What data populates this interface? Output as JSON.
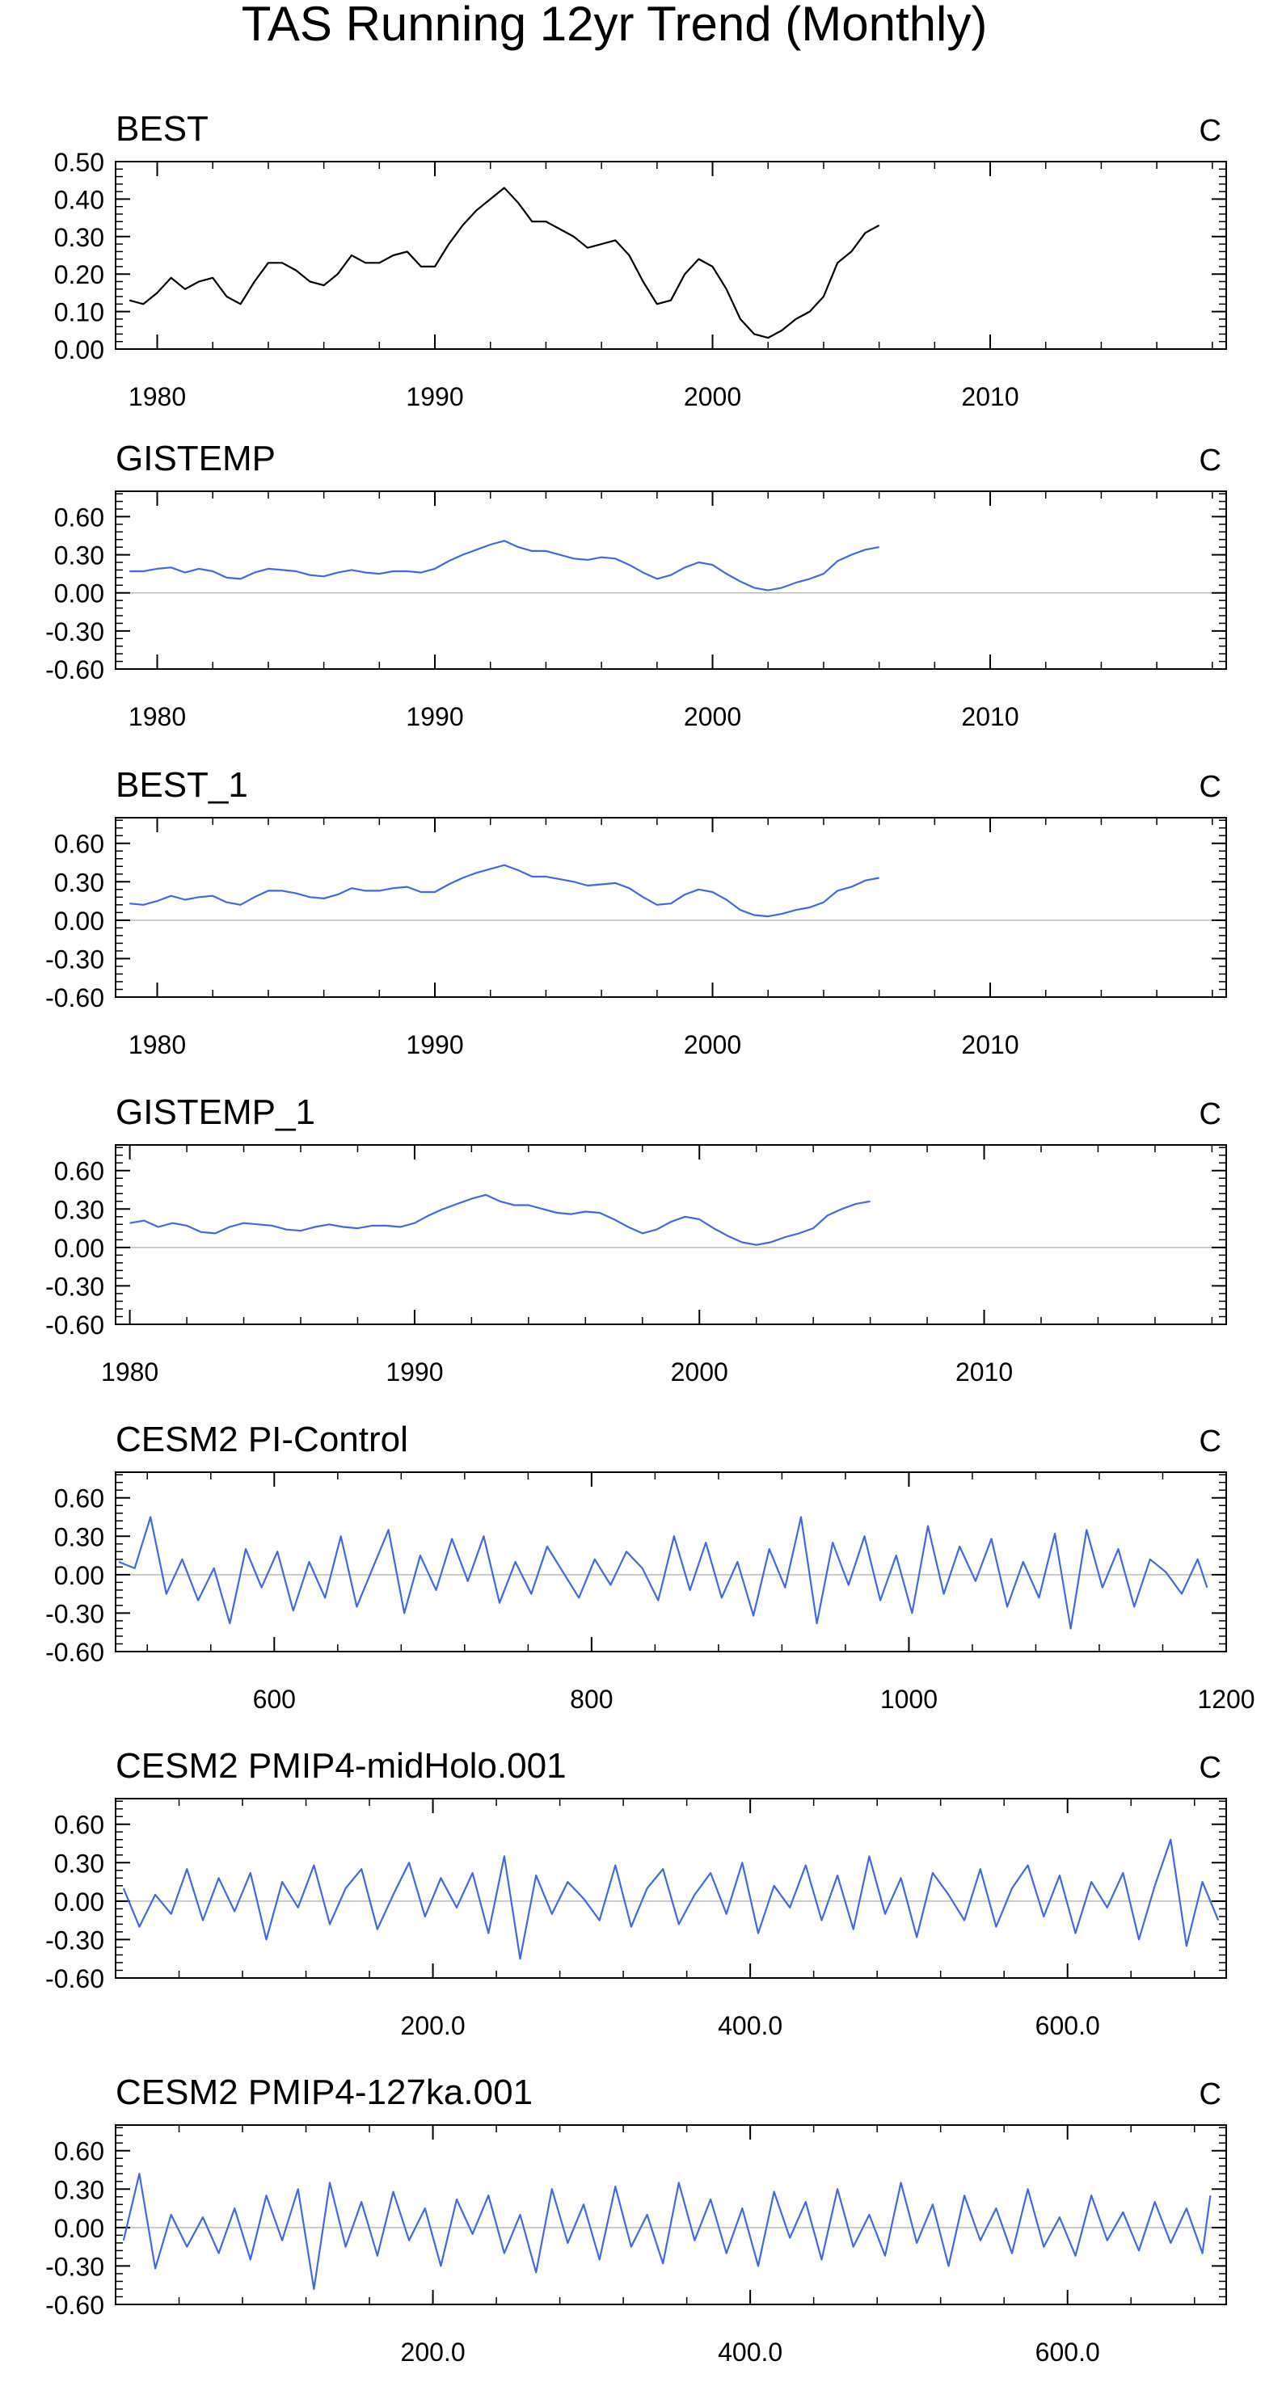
{
  "figure": {
    "title": "TAS Running 12yr Trend (Monthly)"
  },
  "colors": {
    "best": "#000000",
    "series": "#4169e1",
    "zero_line": "#bbbbbb"
  },
  "chart_data": [
    {
      "type": "line",
      "title": "BEST",
      "units": "C",
      "xlim": [
        1978.5,
        2018.5
      ],
      "ylim": [
        0,
        0.5
      ],
      "xticks": [
        1980,
        1990,
        2000,
        2010
      ],
      "xtick_labels": [
        "1980",
        "1990",
        "2000",
        "2010"
      ],
      "yticks": [
        0,
        0.1,
        0.2,
        0.3,
        0.4,
        0.5
      ],
      "ytick_labels": [
        "0.00",
        "0.10",
        "0.20",
        "0.30",
        "0.40",
        "0.50"
      ],
      "zero_line": false,
      "color": "#000000",
      "x": [
        1979.0,
        1979.5,
        1980.0,
        1980.5,
        1981.0,
        1981.5,
        1982.0,
        1982.5,
        1983.0,
        1983.5,
        1984.0,
        1984.5,
        1985.0,
        1985.5,
        1986.0,
        1986.5,
        1987.0,
        1987.5,
        1988.0,
        1988.5,
        1989.0,
        1989.5,
        1990.0,
        1990.5,
        1991.0,
        1991.5,
        1992.0,
        1992.5,
        1993.0,
        1993.5,
        1994.0,
        1994.5,
        1995.0,
        1995.5,
        1996.0,
        1996.5,
        1997.0,
        1997.5,
        1998.0,
        1998.5,
        1999.0,
        1999.5,
        2000.0,
        2000.5,
        2001.0,
        2001.5,
        2002.0,
        2002.5,
        2003.0,
        2003.5,
        2004.0,
        2004.5,
        2005.0,
        2005.5,
        2006.0
      ],
      "y": [
        0.13,
        0.12,
        0.15,
        0.19,
        0.16,
        0.18,
        0.19,
        0.14,
        0.12,
        0.18,
        0.23,
        0.23,
        0.21,
        0.18,
        0.17,
        0.2,
        0.25,
        0.23,
        0.23,
        0.25,
        0.26,
        0.22,
        0.22,
        0.28,
        0.33,
        0.37,
        0.4,
        0.43,
        0.39,
        0.34,
        0.34,
        0.32,
        0.3,
        0.27,
        0.28,
        0.29,
        0.25,
        0.18,
        0.12,
        0.13,
        0.2,
        0.24,
        0.22,
        0.16,
        0.08,
        0.04,
        0.03,
        0.05,
        0.08,
        0.1,
        0.14,
        0.23,
        0.26,
        0.31,
        0.33
      ]
    },
    {
      "type": "line",
      "title": "GISTEMP",
      "units": "C",
      "xlim": [
        1978.5,
        2018.5
      ],
      "ylim": [
        -0.6,
        0.8
      ],
      "xticks": [
        1980,
        1990,
        2000,
        2010
      ],
      "xtick_labels": [
        "1980",
        "1990",
        "2000",
        "2010"
      ],
      "yticks": [
        -0.6,
        -0.3,
        0,
        0.3,
        0.6
      ],
      "ytick_labels": [
        "-0.60",
        "-0.30",
        "0.00",
        "0.30",
        "0.60"
      ],
      "zero_line": true,
      "color": "#4169e1",
      "x": [
        1979.0,
        1979.5,
        1980.0,
        1980.5,
        1981.0,
        1981.5,
        1982.0,
        1982.5,
        1983.0,
        1983.5,
        1984.0,
        1984.5,
        1985.0,
        1985.5,
        1986.0,
        1986.5,
        1987.0,
        1987.5,
        1988.0,
        1988.5,
        1989.0,
        1989.5,
        1990.0,
        1990.5,
        1991.0,
        1991.5,
        1992.0,
        1992.5,
        1993.0,
        1993.5,
        1994.0,
        1994.5,
        1995.0,
        1995.5,
        1996.0,
        1996.5,
        1997.0,
        1997.5,
        1998.0,
        1998.5,
        1999.0,
        1999.5,
        2000.0,
        2000.5,
        2001.0,
        2001.5,
        2002.0,
        2002.5,
        2003.0,
        2003.5,
        2004.0,
        2004.5,
        2005.0,
        2005.5,
        2006.0
      ],
      "y": [
        0.17,
        0.17,
        0.19,
        0.2,
        0.16,
        0.19,
        0.17,
        0.12,
        0.11,
        0.16,
        0.19,
        0.18,
        0.17,
        0.14,
        0.13,
        0.16,
        0.18,
        0.16,
        0.15,
        0.17,
        0.17,
        0.16,
        0.19,
        0.25,
        0.3,
        0.34,
        0.38,
        0.41,
        0.36,
        0.33,
        0.33,
        0.3,
        0.27,
        0.26,
        0.28,
        0.27,
        0.22,
        0.16,
        0.11,
        0.14,
        0.2,
        0.24,
        0.22,
        0.15,
        0.09,
        0.04,
        0.02,
        0.04,
        0.08,
        0.11,
        0.15,
        0.25,
        0.3,
        0.34,
        0.36
      ]
    },
    {
      "type": "line",
      "title": "BEST_1",
      "units": "C",
      "xlim": [
        1978.5,
        2018.5
      ],
      "ylim": [
        -0.6,
        0.8
      ],
      "xticks": [
        1980,
        1990,
        2000,
        2010
      ],
      "xtick_labels": [
        "1980",
        "1990",
        "2000",
        "2010"
      ],
      "yticks": [
        -0.6,
        -0.3,
        0,
        0.3,
        0.6
      ],
      "ytick_labels": [
        "-0.60",
        "-0.30",
        "0.00",
        "0.30",
        "0.60"
      ],
      "zero_line": true,
      "color": "#4169e1",
      "x": [
        1979.0,
        1979.5,
        1980.0,
        1980.5,
        1981.0,
        1981.5,
        1982.0,
        1982.5,
        1983.0,
        1983.5,
        1984.0,
        1984.5,
        1985.0,
        1985.5,
        1986.0,
        1986.5,
        1987.0,
        1987.5,
        1988.0,
        1988.5,
        1989.0,
        1989.5,
        1990.0,
        1990.5,
        1991.0,
        1991.5,
        1992.0,
        1992.5,
        1993.0,
        1993.5,
        1994.0,
        1994.5,
        1995.0,
        1995.5,
        1996.0,
        1996.5,
        1997.0,
        1997.5,
        1998.0,
        1998.5,
        1999.0,
        1999.5,
        2000.0,
        2000.5,
        2001.0,
        2001.5,
        2002.0,
        2002.5,
        2003.0,
        2003.5,
        2004.0,
        2004.5,
        2005.0,
        2005.5,
        2006.0
      ],
      "y": [
        0.13,
        0.12,
        0.15,
        0.19,
        0.16,
        0.18,
        0.19,
        0.14,
        0.12,
        0.18,
        0.23,
        0.23,
        0.21,
        0.18,
        0.17,
        0.2,
        0.25,
        0.23,
        0.23,
        0.25,
        0.26,
        0.22,
        0.22,
        0.28,
        0.33,
        0.37,
        0.4,
        0.43,
        0.39,
        0.34,
        0.34,
        0.32,
        0.3,
        0.27,
        0.28,
        0.29,
        0.25,
        0.18,
        0.12,
        0.13,
        0.2,
        0.24,
        0.22,
        0.16,
        0.08,
        0.04,
        0.03,
        0.05,
        0.08,
        0.1,
        0.14,
        0.23,
        0.26,
        0.31,
        0.33
      ]
    },
    {
      "type": "line",
      "title": "GISTEMP_1",
      "units": "C",
      "xlim": [
        1979.5,
        2018.5
      ],
      "ylim": [
        -0.6,
        0.8
      ],
      "xticks": [
        1980,
        1990,
        2000,
        2010
      ],
      "xtick_labels": [
        "1980",
        "1990",
        "2000",
        "2010"
      ],
      "yticks": [
        -0.6,
        -0.3,
        0,
        0.3,
        0.6
      ],
      "ytick_labels": [
        "-0.60",
        "-0.30",
        "0.00",
        "0.30",
        "0.60"
      ],
      "zero_line": true,
      "color": "#4169e1",
      "x": [
        1980.0,
        1980.5,
        1981.0,
        1981.5,
        1982.0,
        1982.5,
        1983.0,
        1983.5,
        1984.0,
        1984.5,
        1985.0,
        1985.5,
        1986.0,
        1986.5,
        1987.0,
        1987.5,
        1988.0,
        1988.5,
        1989.0,
        1989.5,
        1990.0,
        1990.5,
        1991.0,
        1991.5,
        1992.0,
        1992.5,
        1993.0,
        1993.5,
        1994.0,
        1994.5,
        1995.0,
        1995.5,
        1996.0,
        1996.5,
        1997.0,
        1997.5,
        1998.0,
        1998.5,
        1999.0,
        1999.5,
        2000.0,
        2000.5,
        2001.0,
        2001.5,
        2002.0,
        2002.5,
        2003.0,
        2003.5,
        2004.0,
        2004.5,
        2005.0,
        2005.5,
        2006.0
      ],
      "y": [
        0.19,
        0.21,
        0.16,
        0.19,
        0.17,
        0.12,
        0.11,
        0.16,
        0.19,
        0.18,
        0.17,
        0.14,
        0.13,
        0.16,
        0.18,
        0.16,
        0.15,
        0.17,
        0.17,
        0.16,
        0.19,
        0.25,
        0.3,
        0.34,
        0.38,
        0.41,
        0.36,
        0.33,
        0.33,
        0.3,
        0.27,
        0.26,
        0.28,
        0.27,
        0.22,
        0.16,
        0.11,
        0.14,
        0.2,
        0.24,
        0.22,
        0.15,
        0.09,
        0.04,
        0.02,
        0.04,
        0.08,
        0.11,
        0.15,
        0.25,
        0.3,
        0.34,
        0.36
      ]
    },
    {
      "type": "line",
      "title": "CESM2 PI-Control",
      "units": "C",
      "xlim": [
        500,
        1200
      ],
      "ylim": [
        -0.6,
        0.8
      ],
      "xticks": [
        600,
        800,
        1000,
        1200
      ],
      "xtick_labels": [
        "600",
        "800",
        "1000",
        "1200"
      ],
      "yticks": [
        -0.6,
        -0.3,
        0,
        0.3,
        0.6
      ],
      "ytick_labels": [
        "-0.60",
        "-0.30",
        "0.00",
        "0.30",
        "0.60"
      ],
      "zero_line": true,
      "color": "#4169e1",
      "x": [
        502,
        512,
        522,
        532,
        542,
        552,
        562,
        572,
        582,
        592,
        602,
        612,
        622,
        632,
        642,
        652,
        662,
        672,
        682,
        692,
        702,
        712,
        722,
        732,
        742,
        752,
        762,
        772,
        782,
        792,
        802,
        812,
        822,
        832,
        842,
        852,
        862,
        872,
        882,
        892,
        902,
        912,
        922,
        932,
        942,
        952,
        962,
        972,
        982,
        992,
        1002,
        1012,
        1022,
        1032,
        1042,
        1052,
        1062,
        1072,
        1082,
        1092,
        1102,
        1112,
        1122,
        1132,
        1142,
        1152,
        1162,
        1172,
        1182,
        1188
      ],
      "y": [
        0.1,
        0.05,
        0.45,
        -0.15,
        0.12,
        -0.2,
        0.05,
        -0.38,
        0.2,
        -0.1,
        0.18,
        -0.28,
        0.1,
        -0.18,
        0.3,
        -0.25,
        0.05,
        0.35,
        -0.3,
        0.15,
        -0.12,
        0.28,
        -0.05,
        0.3,
        -0.22,
        0.1,
        -0.15,
        0.22,
        0.02,
        -0.18,
        0.12,
        -0.08,
        0.18,
        0.05,
        -0.2,
        0.3,
        -0.12,
        0.25,
        -0.18,
        0.1,
        -0.32,
        0.2,
        -0.1,
        0.45,
        -0.38,
        0.25,
        -0.08,
        0.3,
        -0.2,
        0.15,
        -0.3,
        0.38,
        -0.15,
        0.22,
        -0.05,
        0.28,
        -0.25,
        0.1,
        -0.18,
        0.32,
        -0.42,
        0.35,
        -0.1,
        0.2,
        -0.25,
        0.12,
        0.02,
        -0.15,
        0.12,
        -0.1
      ]
    },
    {
      "type": "line",
      "title": "CESM2 PMIP4-midHolo.001",
      "units": "C",
      "xlim": [
        0,
        700
      ],
      "ylim": [
        -0.6,
        0.8
      ],
      "xticks": [
        200,
        400,
        600
      ],
      "xtick_labels": [
        "200.0",
        "400.0",
        "600.0"
      ],
      "yticks": [
        -0.6,
        -0.3,
        0,
        0.3,
        0.6
      ],
      "ytick_labels": [
        "-0.60",
        "-0.30",
        "0.00",
        "0.30",
        "0.60"
      ],
      "zero_line": true,
      "color": "#4169e1",
      "x": [
        5,
        15,
        25,
        35,
        45,
        55,
        65,
        75,
        85,
        95,
        105,
        115,
        125,
        135,
        145,
        155,
        165,
        175,
        185,
        195,
        205,
        215,
        225,
        235,
        245,
        255,
        265,
        275,
        285,
        295,
        305,
        315,
        325,
        335,
        345,
        355,
        365,
        375,
        385,
        395,
        405,
        415,
        425,
        435,
        445,
        455,
        465,
        475,
        485,
        495,
        505,
        515,
        525,
        535,
        545,
        555,
        565,
        575,
        585,
        595,
        605,
        615,
        625,
        635,
        645,
        655,
        665,
        675,
        685,
        695
      ],
      "y": [
        0.1,
        -0.2,
        0.05,
        -0.1,
        0.25,
        -0.15,
        0.18,
        -0.08,
        0.22,
        -0.3,
        0.15,
        -0.05,
        0.28,
        -0.18,
        0.1,
        0.25,
        -0.22,
        0.05,
        0.3,
        -0.12,
        0.18,
        -0.05,
        0.22,
        -0.25,
        0.35,
        -0.45,
        0.2,
        -0.1,
        0.15,
        0.02,
        -0.15,
        0.28,
        -0.2,
        0.1,
        0.25,
        -0.18,
        0.05,
        0.22,
        -0.1,
        0.3,
        -0.25,
        0.12,
        -0.05,
        0.28,
        -0.15,
        0.2,
        -0.22,
        0.35,
        -0.1,
        0.18,
        -0.28,
        0.22,
        0.05,
        -0.15,
        0.25,
        -0.2,
        0.1,
        0.28,
        -0.12,
        0.2,
        -0.25,
        0.15,
        -0.05,
        0.22,
        -0.3,
        0.12,
        0.48,
        -0.35,
        0.15,
        -0.15
      ]
    },
    {
      "type": "line",
      "title": "CESM2 PMIP4-127ka.001",
      "units": "C",
      "xlim": [
        0,
        700
      ],
      "ylim": [
        -0.6,
        0.8
      ],
      "xticks": [
        200,
        400,
        600
      ],
      "xtick_labels": [
        "200.0",
        "400.0",
        "600.0"
      ],
      "yticks": [
        -0.6,
        -0.3,
        0,
        0.3,
        0.6
      ],
      "ytick_labels": [
        "-0.60",
        "-0.30",
        "0.00",
        "0.30",
        "0.60"
      ],
      "zero_line": true,
      "color": "#4169e1",
      "x": [
        5,
        15,
        25,
        35,
        45,
        55,
        65,
        75,
        85,
        95,
        105,
        115,
        125,
        135,
        145,
        155,
        165,
        175,
        185,
        195,
        205,
        215,
        225,
        235,
        245,
        255,
        265,
        275,
        285,
        295,
        305,
        315,
        325,
        335,
        345,
        355,
        365,
        375,
        385,
        395,
        405,
        415,
        425,
        435,
        445,
        455,
        465,
        475,
        485,
        495,
        505,
        515,
        525,
        535,
        545,
        555,
        565,
        575,
        585,
        595,
        605,
        615,
        625,
        635,
        645,
        655,
        665,
        675,
        685,
        690
      ],
      "y": [
        -0.1,
        0.42,
        -0.32,
        0.1,
        -0.15,
        0.08,
        -0.2,
        0.15,
        -0.25,
        0.25,
        -0.1,
        0.3,
        -0.48,
        0.35,
        -0.15,
        0.2,
        -0.22,
        0.28,
        -0.1,
        0.15,
        -0.3,
        0.22,
        -0.05,
        0.25,
        -0.2,
        0.1,
        -0.35,
        0.3,
        -0.12,
        0.18,
        -0.25,
        0.32,
        -0.15,
        0.1,
        -0.28,
        0.35,
        -0.1,
        0.22,
        -0.2,
        0.15,
        -0.3,
        0.28,
        -0.08,
        0.2,
        -0.25,
        0.3,
        -0.15,
        0.1,
        -0.22,
        0.35,
        -0.12,
        0.18,
        -0.3,
        0.25,
        -0.1,
        0.15,
        -0.2,
        0.3,
        -0.15,
        0.08,
        -0.22,
        0.25,
        -0.1,
        0.12,
        -0.18,
        0.2,
        -0.12,
        0.15,
        -0.2,
        0.25
      ]
    }
  ]
}
